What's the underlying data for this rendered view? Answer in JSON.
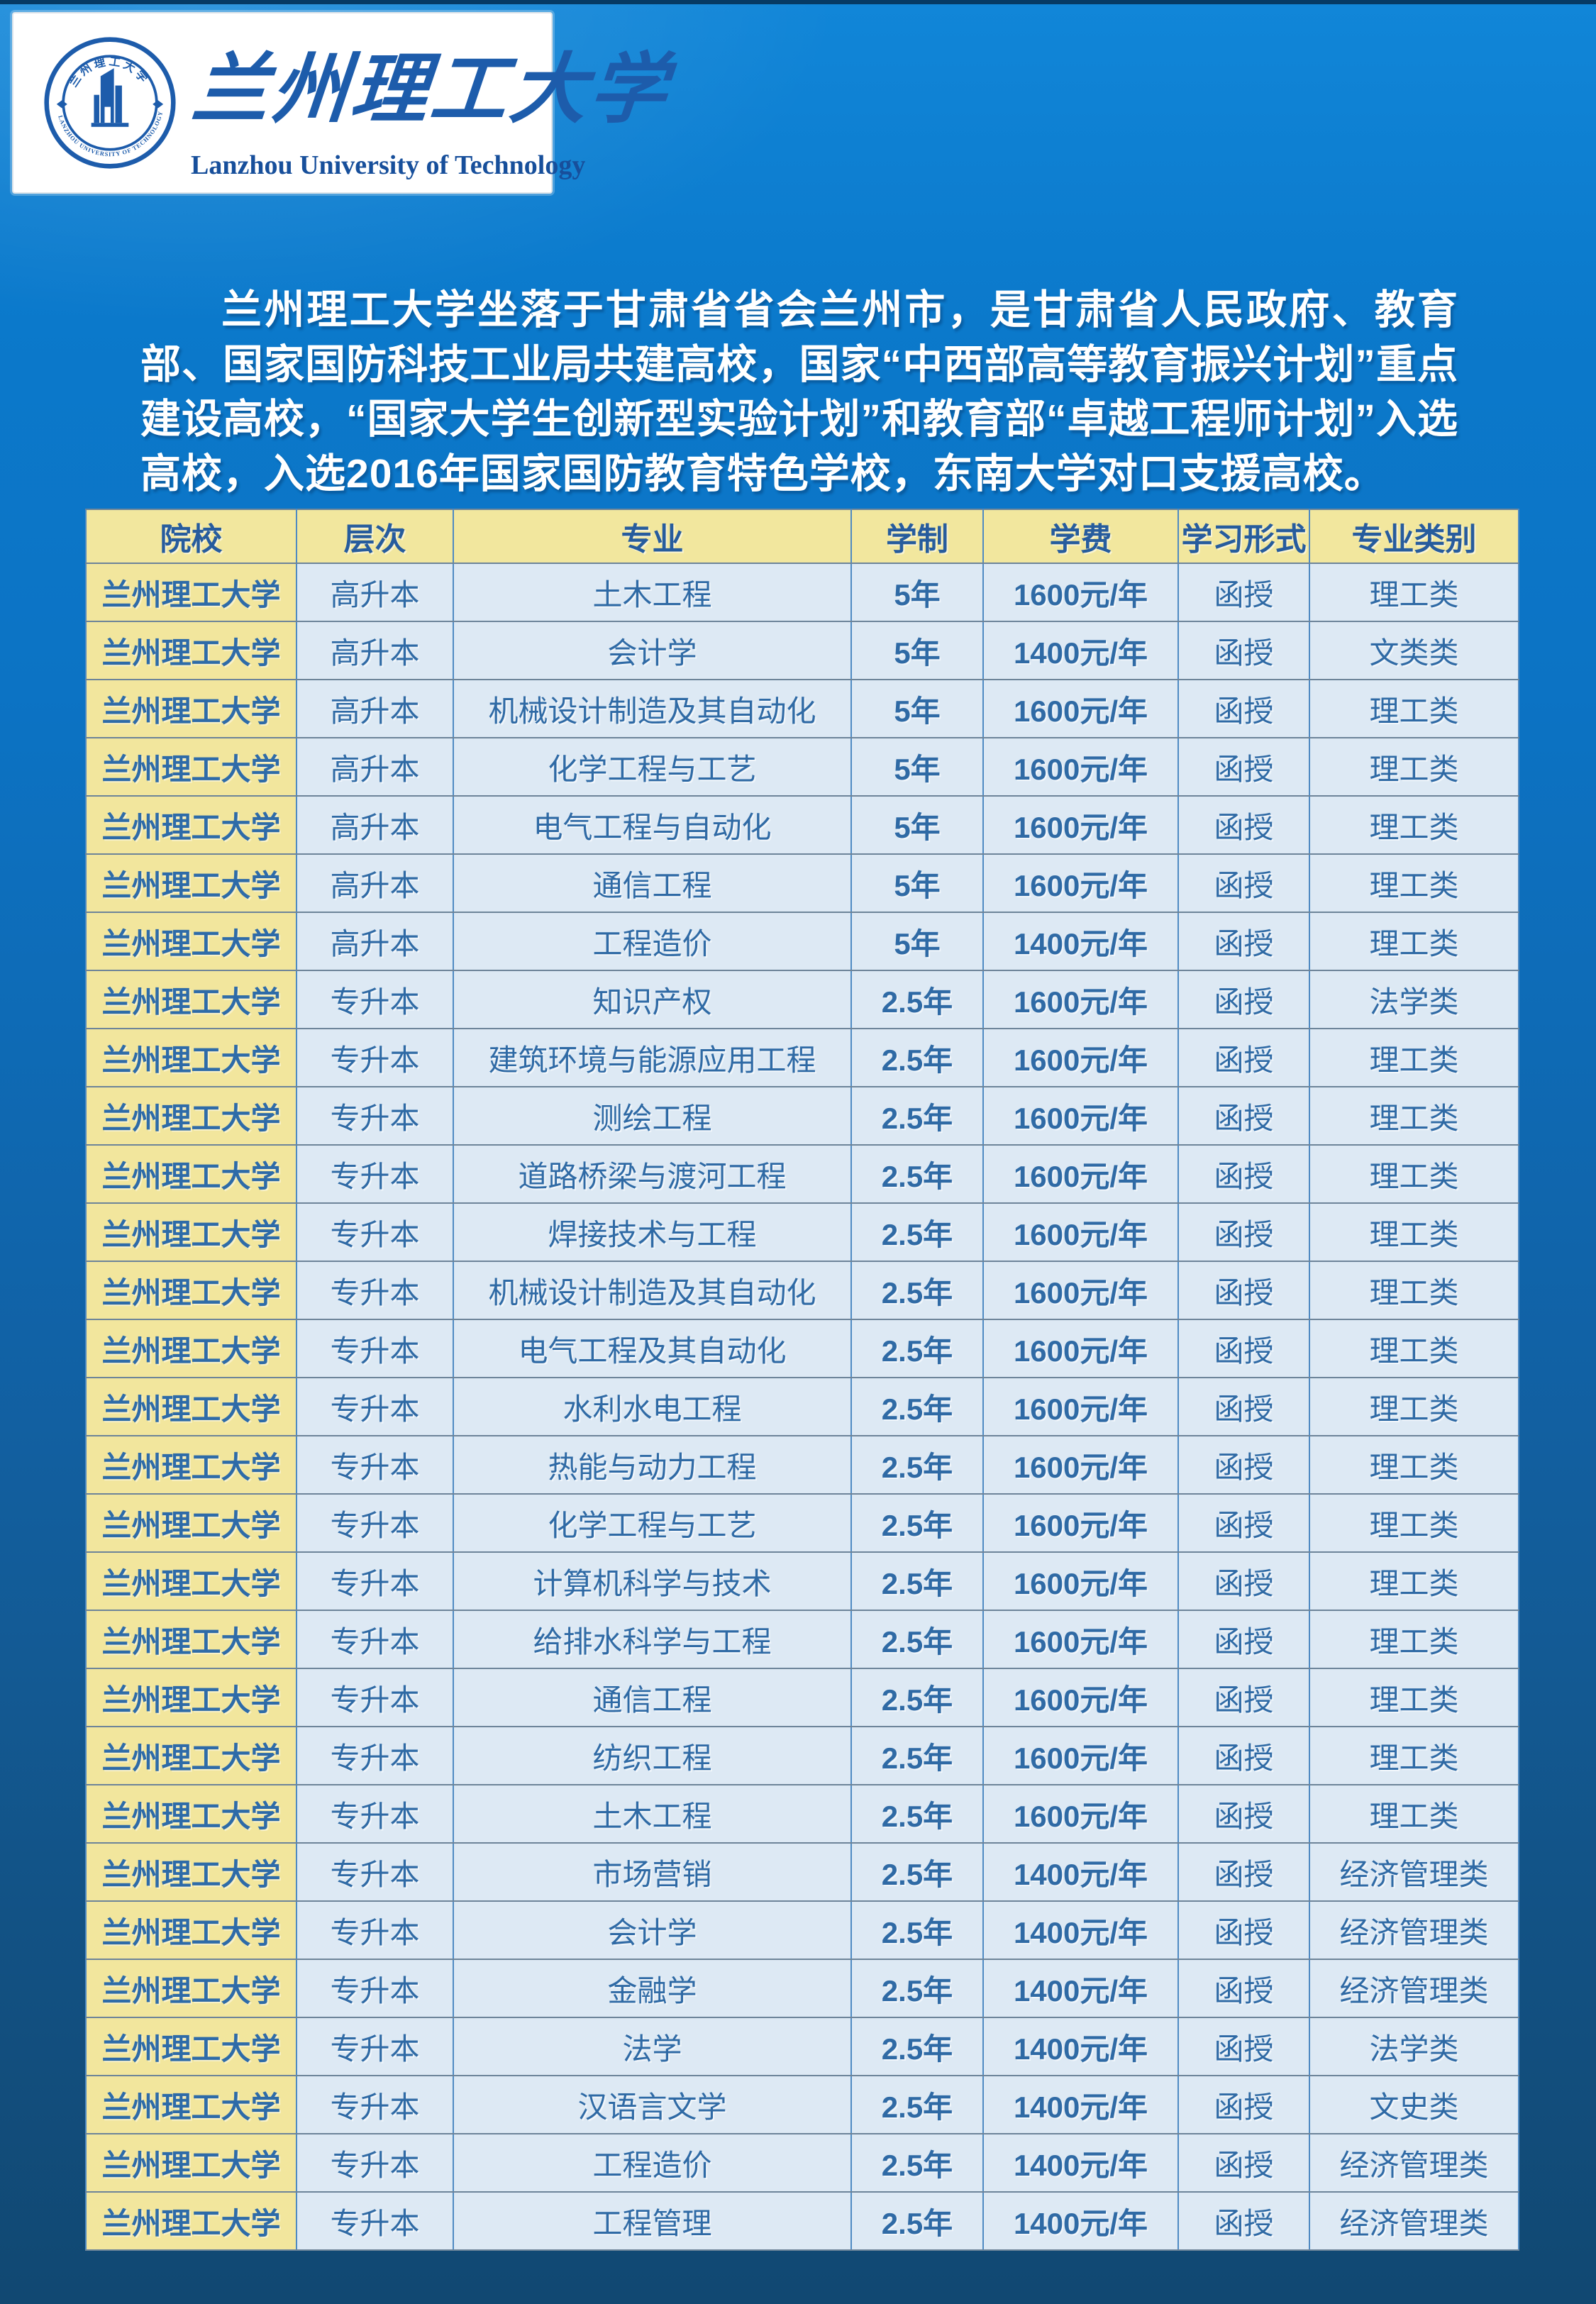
{
  "logo": {
    "seal_top_text": "兰州理工大学",
    "seal_arc_text": "LANZHOU UNIVERSITY OF TECHNOLOGY",
    "cn_name": "兰州理工大学",
    "en_name": "Lanzhou University of Technology"
  },
  "intro": {
    "text": "兰州理工大学坐落于甘肃省省会兰州市，是甘肃省人民政府、教育部、国家国防科技工业局共建高校，国家“中西部高等教育振兴计划”重点建设高校，“国家大学生创新型实验计划”和教育部“卓越工程师计划”入选高校，入选2016年国家国防教育特色学校，东南大学对口支援高校。"
  },
  "table": {
    "headers": [
      "院校",
      "层次",
      "专业",
      "学制",
      "学费",
      "学习形式",
      "专业类别"
    ],
    "rows": [
      [
        "兰州理工大学",
        "高升本",
        "土木工程",
        "5年",
        "1600元/年",
        "函授",
        "理工类"
      ],
      [
        "兰州理工大学",
        "高升本",
        "会计学",
        "5年",
        "1400元/年",
        "函授",
        "文类类"
      ],
      [
        "兰州理工大学",
        "高升本",
        "机械设计制造及其自动化",
        "5年",
        "1600元/年",
        "函授",
        "理工类"
      ],
      [
        "兰州理工大学",
        "高升本",
        "化学工程与工艺",
        "5年",
        "1600元/年",
        "函授",
        "理工类"
      ],
      [
        "兰州理工大学",
        "高升本",
        "电气工程与自动化",
        "5年",
        "1600元/年",
        "函授",
        "理工类"
      ],
      [
        "兰州理工大学",
        "高升本",
        "通信工程",
        "5年",
        "1600元/年",
        "函授",
        "理工类"
      ],
      [
        "兰州理工大学",
        "高升本",
        "工程造价",
        "5年",
        "1400元/年",
        "函授",
        "理工类"
      ],
      [
        "兰州理工大学",
        "专升本",
        "知识产权",
        "2.5年",
        "1600元/年",
        "函授",
        "法学类"
      ],
      [
        "兰州理工大学",
        "专升本",
        "建筑环境与能源应用工程",
        "2.5年",
        "1600元/年",
        "函授",
        "理工类"
      ],
      [
        "兰州理工大学",
        "专升本",
        "测绘工程",
        "2.5年",
        "1600元/年",
        "函授",
        "理工类"
      ],
      [
        "兰州理工大学",
        "专升本",
        "道路桥梁与渡河工程",
        "2.5年",
        "1600元/年",
        "函授",
        "理工类"
      ],
      [
        "兰州理工大学",
        "专升本",
        "焊接技术与工程",
        "2.5年",
        "1600元/年",
        "函授",
        "理工类"
      ],
      [
        "兰州理工大学",
        "专升本",
        "机械设计制造及其自动化",
        "2.5年",
        "1600元/年",
        "函授",
        "理工类"
      ],
      [
        "兰州理工大学",
        "专升本",
        "电气工程及其自动化",
        "2.5年",
        "1600元/年",
        "函授",
        "理工类"
      ],
      [
        "兰州理工大学",
        "专升本",
        "水利水电工程",
        "2.5年",
        "1600元/年",
        "函授",
        "理工类"
      ],
      [
        "兰州理工大学",
        "专升本",
        "热能与动力工程",
        "2.5年",
        "1600元/年",
        "函授",
        "理工类"
      ],
      [
        "兰州理工大学",
        "专升本",
        "化学工程与工艺",
        "2.5年",
        "1600元/年",
        "函授",
        "理工类"
      ],
      [
        "兰州理工大学",
        "专升本",
        "计算机科学与技术",
        "2.5年",
        "1600元/年",
        "函授",
        "理工类"
      ],
      [
        "兰州理工大学",
        "专升本",
        "给排水科学与工程",
        "2.5年",
        "1600元/年",
        "函授",
        "理工类"
      ],
      [
        "兰州理工大学",
        "专升本",
        "通信工程",
        "2.5年",
        "1600元/年",
        "函授",
        "理工类"
      ],
      [
        "兰州理工大学",
        "专升本",
        "纺织工程",
        "2.5年",
        "1600元/年",
        "函授",
        "理工类"
      ],
      [
        "兰州理工大学",
        "专升本",
        "土木工程",
        "2.5年",
        "1600元/年",
        "函授",
        "理工类"
      ],
      [
        "兰州理工大学",
        "专升本",
        "市场营销",
        "2.5年",
        "1400元/年",
        "函授",
        "经济管理类"
      ],
      [
        "兰州理工大学",
        "专升本",
        "会计学",
        "2.5年",
        "1400元/年",
        "函授",
        "经济管理类"
      ],
      [
        "兰州理工大学",
        "专升本",
        "金融学",
        "2.5年",
        "1400元/年",
        "函授",
        "经济管理类"
      ],
      [
        "兰州理工大学",
        "专升本",
        "法学",
        "2.5年",
        "1400元/年",
        "函授",
        "法学类"
      ],
      [
        "兰州理工大学",
        "专升本",
        "汉语言文学",
        "2.5年",
        "1400元/年",
        "函授",
        "文史类"
      ],
      [
        "兰州理工大学",
        "专升本",
        "工程造价",
        "2.5年",
        "1400元/年",
        "函授",
        "经济管理类"
      ],
      [
        "兰州理工大学",
        "专升本",
        "工程管理",
        "2.5年",
        "1400元/年",
        "函授",
        "经济管理类"
      ]
    ]
  },
  "colors": {
    "background_top": "#1186d8",
    "background_bottom": "#114872",
    "header_cell_bg": "#f2e79e",
    "school_cell_bg": "#f2e69d",
    "data_cell_bg": "#dde9f4",
    "grid_vertical": "#4f8ac2",
    "grid_horizontal": "#6d8499",
    "table_text": "#2f6aa5",
    "logo_blue": "#1d5cab",
    "intro_text": "#ffffff"
  }
}
